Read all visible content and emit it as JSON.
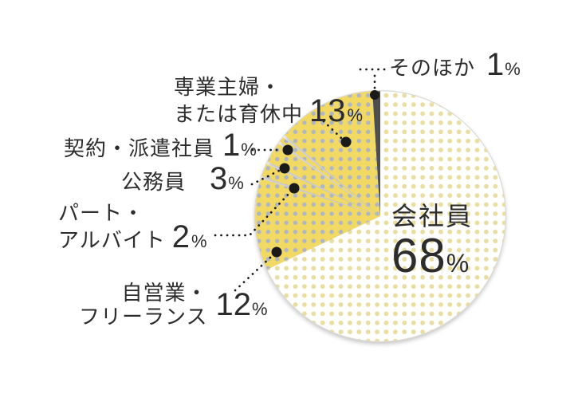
{
  "chart_data": {
    "type": "pie",
    "title": "",
    "unit": "%",
    "direction": "clockwise",
    "start_angle_deg": 0,
    "legend": "none",
    "labels_as_callouts": true,
    "slices": [
      {
        "label": "会社員",
        "value": 68,
        "style": "white-dots"
      },
      {
        "label": "自営業・フリーランス",
        "value": 12,
        "style": "yellow-dots"
      },
      {
        "label": "パート・アルバイト",
        "value": 2,
        "style": "yellow-dots"
      },
      {
        "label": "公務員",
        "value": 3,
        "style": "yellow-dots"
      },
      {
        "label": "契約・派遣社員",
        "value": 1,
        "style": "yellow-dots"
      },
      {
        "label": "専業主婦・または育休中",
        "value": 13,
        "style": "yellow-dots"
      },
      {
        "label": "そのほか",
        "value": 1,
        "style": "dark"
      }
    ],
    "colors": {
      "yellow_bg": "#f2d963",
      "yellow_dot": "#aeb6c4",
      "white_bg": "#ffffff",
      "white_dot": "#eadda0",
      "dark_slice": "#4e4e4e",
      "text": "#2c2c2c",
      "leader": "#1a1a1a",
      "rim": "#dcdad3"
    }
  },
  "callouts": {
    "company": {
      "text": "会社員",
      "num": "68",
      "unit": "%"
    },
    "other": {
      "text": "そのほか",
      "num": "1",
      "unit": "%"
    },
    "housewife": {
      "line1": "専業主婦・",
      "line2": "または育休中",
      "num": "13",
      "unit": "%"
    },
    "contract": {
      "text": "契約・派遣社員",
      "num": "1",
      "unit": "%"
    },
    "civil_servant": {
      "text": "公務員",
      "num": "3",
      "unit": "%"
    },
    "part_time": {
      "line1": "パート・",
      "line2": "アルバイト",
      "num": "2",
      "unit": "%"
    },
    "self_employed": {
      "line1": "自営業・",
      "line2": "フリーランス",
      "num": "12",
      "unit": "%"
    }
  }
}
